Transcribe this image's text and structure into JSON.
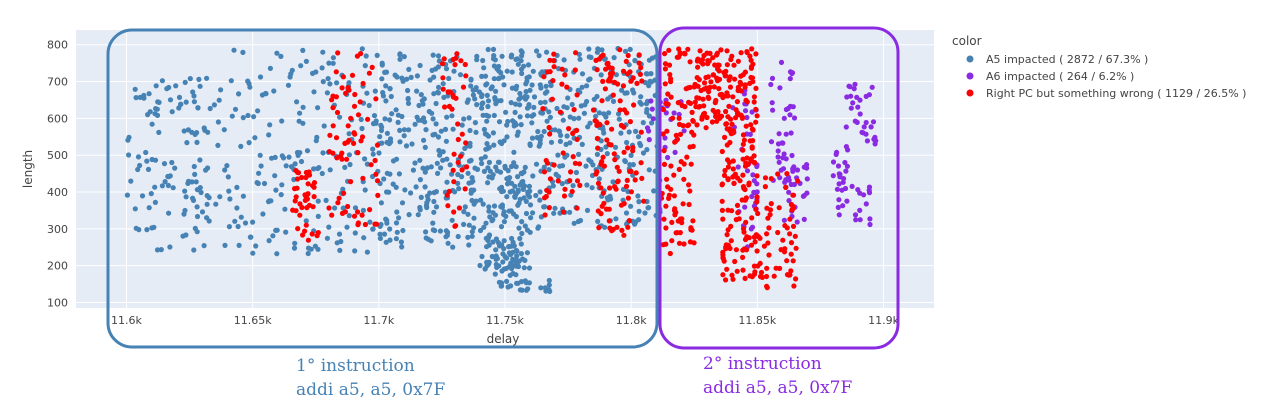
{
  "chart_data": {
    "type": "scatter",
    "xlabel": "delay",
    "ylabel": "length",
    "xlim": [
      11580,
      11920
    ],
    "ylim": [
      85,
      840
    ],
    "x_ticks": [
      11600,
      11650,
      11700,
      11750,
      11800,
      11850,
      11900
    ],
    "x_tick_labels": [
      "11.6k",
      "11.65k",
      "11.7k",
      "11.75k",
      "11.8k",
      "11.85k",
      "11.9k"
    ],
    "y_ticks": [
      100,
      200,
      300,
      400,
      500,
      600,
      700,
      800
    ],
    "y_tick_labels": [
      "100",
      "200",
      "300",
      "400",
      "500",
      "600",
      "700",
      "800"
    ],
    "grid": true,
    "legend": {
      "title": "color",
      "placement": "top-right outside"
    },
    "series": [
      {
        "name": "A5 impacted ( 2872 / 67.3% )",
        "color": "#4682b4",
        "clusters": [
          {
            "x": [
              11600,
              11640
            ],
            "y": [
              240,
              710
            ],
            "n": 130
          },
          {
            "x": [
              11640,
              11700
            ],
            "y": [
              230,
              790
            ],
            "n": 190
          },
          {
            "x": [
              11700,
              11740
            ],
            "y": [
              250,
              790
            ],
            "n": 260
          },
          {
            "x": [
              11740,
              11760
            ],
            "y": [
              190,
              790
            ],
            "n": 260
          },
          {
            "x": [
              11745,
              11755
            ],
            "y": [
              140,
              260
            ],
            "n": 30
          },
          {
            "x": [
              11760,
              11812
            ],
            "y": [
              300,
              790
            ],
            "n": 290
          },
          {
            "x": [
              11755,
              11768
            ],
            "y": [
              130,
              160
            ],
            "n": 16
          }
        ]
      },
      {
        "name": "A6 impacted ( 264 / 6.2% )",
        "color": "#8a2be2",
        "clusters": [
          {
            "x": [
              11805,
              11822
            ],
            "y": [
              480,
              650
            ],
            "n": 22
          },
          {
            "x": [
              11840,
              11850
            ],
            "y": [
              250,
              690
            ],
            "n": 40
          },
          {
            "x": [
              11855,
              11865
            ],
            "y": [
              400,
              760
            ],
            "n": 40
          },
          {
            "x": [
              11860,
              11870
            ],
            "y": [
              300,
              480
            ],
            "n": 25
          },
          {
            "x": [
              11880,
              11886
            ],
            "y": [
              360,
              530
            ],
            "n": 20
          },
          {
            "x": [
              11885,
              11897
            ],
            "y": [
              530,
              700
            ],
            "n": 30
          },
          {
            "x": [
              11882,
              11895
            ],
            "y": [
              310,
              420
            ],
            "n": 18
          }
        ]
      },
      {
        "name": "Right PC but something wrong ( 1129 / 26.5% )",
        "color": "#ff0000",
        "clusters": [
          {
            "x": [
              11665,
              11676
            ],
            "y": [
              260,
              460
            ],
            "n": 40
          },
          {
            "x": [
              11680,
              11700
            ],
            "y": [
              310,
              780
            ],
            "n": 70
          },
          {
            "x": [
              11725,
              11735
            ],
            "y": [
              300,
              790
            ],
            "n": 40
          },
          {
            "x": [
              11765,
              11780
            ],
            "y": [
              330,
              780
            ],
            "n": 50
          },
          {
            "x": [
              11785,
              11805
            ],
            "y": [
              280,
              790
            ],
            "n": 110
          },
          {
            "x": [
              11812,
              11825
            ],
            "y": [
              230,
              790
            ],
            "n": 100
          },
          {
            "x": [
              11825,
              11850
            ],
            "y": [
              560,
              790
            ],
            "n": 150
          },
          {
            "x": [
              11836,
              11850
            ],
            "y": [
              160,
              560
            ],
            "n": 110
          },
          {
            "x": [
              11850,
              11866
            ],
            "y": [
              130,
              450
            ],
            "n": 60
          }
        ]
      }
    ]
  },
  "annotations": {
    "first_label_line1": "1° instruction",
    "first_label_line2": "addi a5, a5, 0x7F",
    "second_label_line1": "2° instruction",
    "second_label_line2": "addi a5, a5, 0x7F",
    "first_color": "#4682b4",
    "second_color": "#8a2be2"
  }
}
